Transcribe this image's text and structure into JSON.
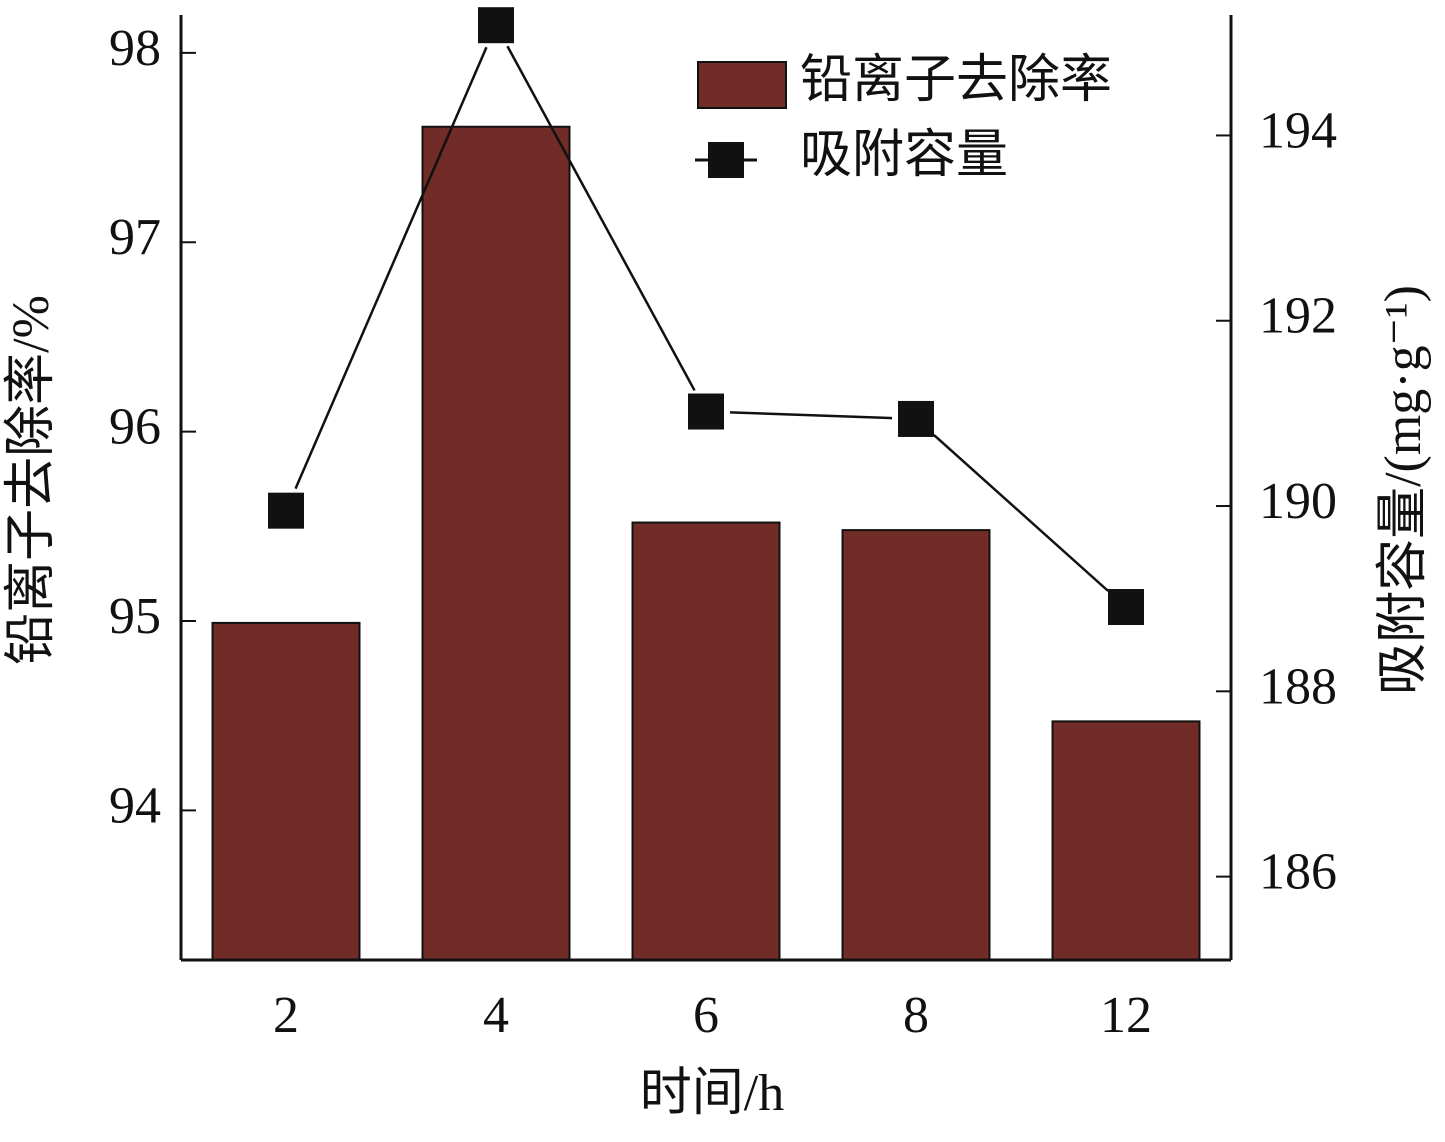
{
  "chart_data": {
    "type": "bar",
    "categories": [
      "2",
      "4",
      "6",
      "8",
      "12"
    ],
    "x_label": "时间/h",
    "y_label": "铅离子去除率/%",
    "y2_label": "吸附容量/(mg·g⁻¹)",
    "series": [
      {
        "name": "铅离子去除率",
        "type": "bar",
        "color": "#722c27",
        "values": [
          94.99,
          97.61,
          95.52,
          95.48,
          94.47
        ]
      },
      {
        "name": "吸附容量",
        "type": "line",
        "axis": "y2",
        "color": "#111111",
        "values": [
          189.95,
          195.19,
          191.02,
          190.94,
          188.91
        ]
      }
    ],
    "ylim": [
      93.21,
      98.2
    ],
    "yticks": [
      94,
      95,
      96,
      97,
      98
    ],
    "y2lim": [
      185.1,
      195.3
    ],
    "y2ticks": [
      186,
      188,
      190,
      192,
      194
    ],
    "legend": "upper-right"
  }
}
